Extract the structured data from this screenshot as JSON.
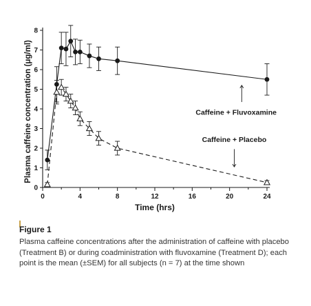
{
  "chart_data": {
    "type": "line",
    "xlabel": "Time (hrs)",
    "ylabel": "Plasma caffeine concentration (μg/ml)",
    "xlim": [
      0,
      24
    ],
    "ylim": [
      0,
      8
    ],
    "xticks": [
      0,
      4,
      8,
      12,
      16,
      20,
      24
    ],
    "yticks": [
      0,
      1,
      2,
      3,
      4,
      5,
      6,
      7,
      8
    ],
    "grid": false,
    "series": [
      {
        "name": "Caffeine + Fluvoxamine",
        "marker": "filled-circle",
        "line": "solid",
        "x": [
          0.5,
          1.5,
          2.0,
          2.5,
          3.0,
          3.5,
          4.0,
          5.0,
          6.0,
          8.0,
          24.0
        ],
        "y": [
          1.4,
          5.25,
          7.1,
          7.05,
          7.45,
          6.9,
          6.9,
          6.7,
          6.55,
          6.45,
          5.5
        ],
        "err": [
          0.5,
          0.9,
          0.8,
          0.85,
          0.8,
          0.65,
          0.6,
          0.6,
          0.6,
          0.7,
          0.8
        ]
      },
      {
        "name": "Caffeine + Placebo",
        "marker": "open-triangle",
        "line": "dashed",
        "x": [
          0.5,
          1.5,
          2.0,
          2.5,
          3.0,
          3.5,
          4.0,
          5.0,
          6.0,
          8.0,
          24.0
        ],
        "y": [
          0.15,
          4.85,
          5.1,
          4.75,
          4.4,
          4.05,
          3.5,
          3.0,
          2.5,
          2.0,
          0.25
        ],
        "err": [
          0.1,
          0.6,
          0.4,
          0.35,
          0.35,
          0.35,
          0.35,
          0.35,
          0.35,
          0.35,
          0.1
        ]
      }
    ],
    "annotations": [
      {
        "text": "Caffeine + Fluvoxamine",
        "series": "Caffeine + Fluvoxamine"
      },
      {
        "text": "Caffeine + Placebo",
        "series": "Caffeine + Placebo"
      }
    ]
  },
  "caption": {
    "label": "Figure 1",
    "text": "Plasma caffeine concentrations after the administration of caffeine with placebo (Treatment B) or during coadministration with fluvoxamine (Treatment D); each point is the mean (±SEM) for all subjects (n = 7) at the time shown"
  },
  "colors": {
    "ink": "#1a1a1a",
    "accent": "#c8a24a"
  }
}
